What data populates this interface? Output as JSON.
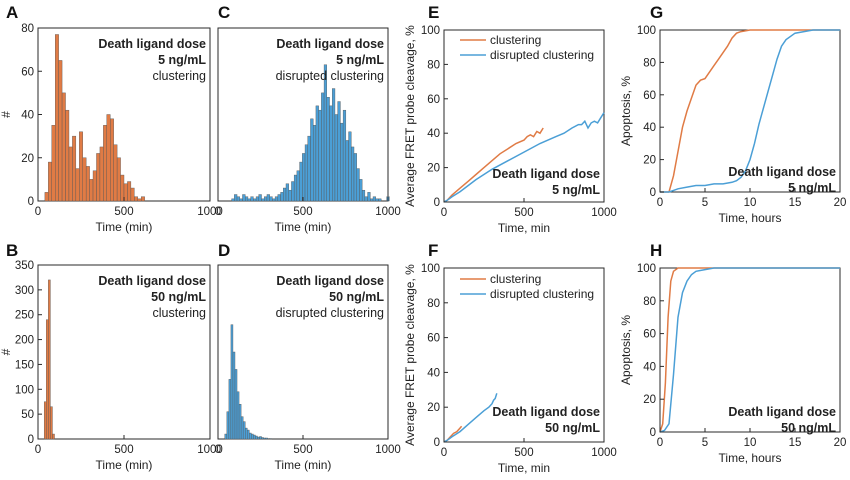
{
  "colors": {
    "clustering": "#e07b45",
    "disrupted": "#4b9fd6",
    "axis": "#2a2a2a"
  },
  "panels": [
    {
      "letter": "A"
    },
    {
      "letter": "C"
    },
    {
      "letter": "E"
    },
    {
      "letter": "G"
    },
    {
      "letter": "B"
    },
    {
      "letter": "D"
    },
    {
      "letter": "F"
    },
    {
      "letter": "H"
    }
  ],
  "chart_data": [
    {
      "id": "A",
      "type": "bar",
      "title_lines": [
        "Death ligand dose",
        "5 ng/mL"
      ],
      "condition": "clustering",
      "xlabel": "Time (min)",
      "ylabel": "#",
      "xlim": [
        0,
        1000
      ],
      "ylim": [
        0,
        80
      ],
      "xticks": [
        0,
        500,
        1000
      ],
      "yticks": [
        0,
        20,
        40,
        60,
        80
      ],
      "series_key": "clustering",
      "bin_width": 20,
      "bin_starts": [
        40,
        60,
        80,
        100,
        120,
        140,
        160,
        180,
        200,
        220,
        240,
        260,
        280,
        300,
        320,
        340,
        360,
        380,
        400,
        420,
        440,
        460,
        480,
        500,
        520,
        540,
        560,
        580,
        600
      ],
      "values": [
        4,
        18,
        35,
        77,
        65,
        50,
        42,
        25,
        30,
        15,
        32,
        20,
        16,
        10,
        14,
        22,
        25,
        35,
        40,
        38,
        26,
        20,
        12,
        8,
        9,
        6,
        2,
        1,
        2
      ]
    },
    {
      "id": "B",
      "type": "bar",
      "title_lines": [
        "Death ligand dose",
        "50 ng/mL"
      ],
      "condition": "clustering",
      "xlabel": "Time (min)",
      "ylabel": "#",
      "xlim": [
        0,
        1000
      ],
      "ylim": [
        0,
        350
      ],
      "xticks": [
        0,
        500,
        1000
      ],
      "yticks": [
        0,
        50,
        100,
        150,
        200,
        250,
        300,
        350
      ],
      "series_key": "clustering",
      "bin_width": 12,
      "bin_starts": [
        36,
        48,
        60,
        72,
        84
      ],
      "values": [
        75,
        240,
        320,
        65,
        10
      ]
    },
    {
      "id": "C",
      "type": "bar",
      "title_lines": [
        "Death ligand dose",
        "5 ng/mL"
      ],
      "condition": "disrupted clustering",
      "xlabel": "Time (min)",
      "ylabel": "",
      "xlim": [
        0,
        1000
      ],
      "ylim": [
        0,
        80
      ],
      "xticks": [
        0,
        500,
        1000
      ],
      "yticks": [],
      "series_key": "disrupted",
      "bin_width": 16,
      "bin_starts": [
        80,
        96,
        112,
        128,
        144,
        160,
        176,
        192,
        208,
        224,
        240,
        256,
        272,
        288,
        304,
        320,
        336,
        352,
        368,
        384,
        400,
        416,
        432,
        448,
        464,
        480,
        496,
        512,
        528,
        544,
        560,
        576,
        592,
        608,
        624,
        640,
        656,
        672,
        688,
        704,
        720,
        736,
        752,
        768,
        784,
        800,
        816,
        832,
        848,
        864,
        880,
        896,
        912,
        928,
        944,
        960,
        976,
        992
      ],
      "values": [
        1,
        3,
        2,
        1,
        3,
        2,
        1,
        2,
        1,
        2,
        3,
        1,
        2,
        3,
        2,
        1,
        2,
        3,
        4,
        6,
        8,
        5,
        9,
        12,
        14,
        18,
        22,
        26,
        30,
        38,
        35,
        44,
        42,
        50,
        63,
        48,
        44,
        52,
        40,
        46,
        36,
        42,
        28,
        32,
        25,
        22,
        15,
        10,
        5,
        2,
        4,
        1,
        2,
        1,
        1,
        0,
        0,
        2
      ]
    },
    {
      "id": "D",
      "type": "bar",
      "title_lines": [
        "Death ligand dose",
        "50 ng/mL"
      ],
      "condition": "disrupted clustering",
      "xlabel": "Time (min)",
      "ylabel": "",
      "xlim": [
        0,
        1000
      ],
      "ylim": [
        0,
        350
      ],
      "xticks": [
        0,
        500,
        1000
      ],
      "yticks": [],
      "series_key": "disrupted",
      "bin_width": 12,
      "bin_starts": [
        40,
        52,
        64,
        76,
        88,
        100,
        112,
        124,
        136,
        148,
        160,
        172,
        184,
        196,
        208,
        220,
        232,
        244,
        256,
        268,
        280,
        292,
        304
      ],
      "values": [
        10,
        55,
        120,
        230,
        175,
        140,
        95,
        70,
        45,
        35,
        22,
        18,
        12,
        10,
        8,
        6,
        4,
        5,
        3,
        2,
        2,
        1,
        1
      ]
    },
    {
      "id": "E",
      "type": "line",
      "legend": [
        "clustering",
        "disrupted clustering"
      ],
      "annotation_lines": [
        "Death ligand dose",
        "5 ng/mL"
      ],
      "xlabel": "Time, min",
      "ylabel": "Average FRET probe cleavage, %",
      "xlim": [
        0,
        1000
      ],
      "ylim": [
        0,
        100
      ],
      "xticks": [
        0,
        500,
        1000
      ],
      "yticks": [
        0,
        20,
        40,
        60,
        80,
        100
      ],
      "series": [
        {
          "name": "clustering",
          "key": "clustering",
          "x": [
            0,
            20,
            50,
            100,
            150,
            200,
            250,
            300,
            350,
            400,
            450,
            500,
            520,
            540,
            560,
            580,
            600,
            620
          ],
          "y": [
            0,
            1,
            4,
            8,
            12,
            16,
            20,
            24,
            28,
            31,
            34,
            36,
            38,
            39,
            38,
            41,
            40,
            43
          ]
        },
        {
          "name": "disrupted clustering",
          "key": "disrupted",
          "x": [
            0,
            20,
            50,
            100,
            200,
            300,
            400,
            500,
            600,
            700,
            750,
            800,
            840,
            860,
            880,
            900,
            920,
            940,
            960,
            980,
            1000
          ],
          "y": [
            0,
            1,
            3,
            6,
            13,
            19,
            24,
            29,
            34,
            38,
            40,
            43,
            45,
            45,
            47,
            43,
            46,
            47,
            46,
            49,
            52
          ]
        }
      ]
    },
    {
      "id": "F",
      "type": "line",
      "legend": [
        "clustering",
        "disrupted clustering"
      ],
      "annotation_lines": [
        "Death ligand dose",
        "50 ng/mL"
      ],
      "xlabel": "Time, min",
      "ylabel": "Average FRET probe cleavage, %",
      "xlim": [
        0,
        1000
      ],
      "ylim": [
        0,
        100
      ],
      "xticks": [
        0,
        500,
        1000
      ],
      "yticks": [
        0,
        20,
        40,
        60,
        80,
        100
      ],
      "series": [
        {
          "name": "clustering",
          "key": "clustering",
          "x": [
            0,
            20,
            40,
            60,
            80,
            100,
            110
          ],
          "y": [
            0,
            1,
            3,
            5,
            6,
            8,
            9
          ]
        },
        {
          "name": "disrupted clustering",
          "key": "disrupted",
          "x": [
            0,
            20,
            50,
            100,
            150,
            200,
            250,
            280,
            300,
            310,
            320,
            330
          ],
          "y": [
            0,
            1,
            3,
            6,
            10,
            14,
            18,
            20,
            22,
            24,
            25,
            28
          ]
        }
      ]
    },
    {
      "id": "G",
      "type": "line",
      "annotation_lines": [
        "Death ligand dose",
        "5 ng/mL"
      ],
      "xlabel": "Time, hours",
      "ylabel": "Apoptosis, %",
      "xlim": [
        0,
        20
      ],
      "ylim": [
        0,
        100
      ],
      "xticks": [
        0,
        5,
        10,
        15,
        20
      ],
      "yticks": [
        0,
        20,
        40,
        60,
        80,
        100
      ],
      "series": [
        {
          "name": "clustering",
          "key": "clustering",
          "x": [
            0,
            1,
            1.5,
            2,
            2.5,
            3,
            3.5,
            4,
            4.5,
            5,
            5.5,
            6,
            6.5,
            7,
            7.5,
            8,
            8.5,
            9,
            10,
            12,
            20
          ],
          "y": [
            0,
            0,
            10,
            25,
            40,
            50,
            58,
            66,
            69,
            70,
            74,
            78,
            82,
            86,
            90,
            95,
            98,
            99,
            100,
            100,
            100
          ]
        },
        {
          "name": "disrupted clustering",
          "key": "disrupted",
          "x": [
            0,
            1,
            1.5,
            2,
            3,
            4,
            5,
            6,
            7,
            8,
            8.5,
            9,
            9.5,
            10,
            10.5,
            11,
            11.5,
            12,
            12.5,
            13,
            13.5,
            14,
            15,
            16,
            17,
            20
          ],
          "y": [
            0,
            0,
            1,
            2,
            3,
            4,
            4,
            5,
            5,
            6,
            7,
            9,
            13,
            20,
            30,
            42,
            52,
            62,
            72,
            82,
            90,
            94,
            98,
            99,
            100,
            100
          ]
        }
      ]
    },
    {
      "id": "H",
      "type": "line",
      "annotation_lines": [
        "Death ligand dose",
        "50 ng/mL"
      ],
      "xlabel": "Time, hours",
      "ylabel": "Apoptosis, %",
      "xlim": [
        0,
        20
      ],
      "ylim": [
        0,
        100
      ],
      "xticks": [
        0,
        5,
        10,
        15,
        20
      ],
      "yticks": [
        0,
        20,
        40,
        60,
        80,
        100
      ],
      "series": [
        {
          "name": "clustering",
          "key": "clustering",
          "x": [
            0,
            0.3,
            0.6,
            0.9,
            1.2,
            1.5,
            2,
            3,
            20
          ],
          "y": [
            0,
            5,
            30,
            70,
            92,
            98,
            100,
            100,
            100
          ]
        },
        {
          "name": "disrupted clustering",
          "key": "disrupted",
          "x": [
            0,
            0.5,
            1,
            1.5,
            2,
            2.5,
            3,
            3.5,
            4,
            5,
            6,
            20
          ],
          "y": [
            0,
            1,
            5,
            35,
            70,
            85,
            92,
            96,
            98,
            99,
            100,
            100
          ]
        }
      ]
    }
  ]
}
